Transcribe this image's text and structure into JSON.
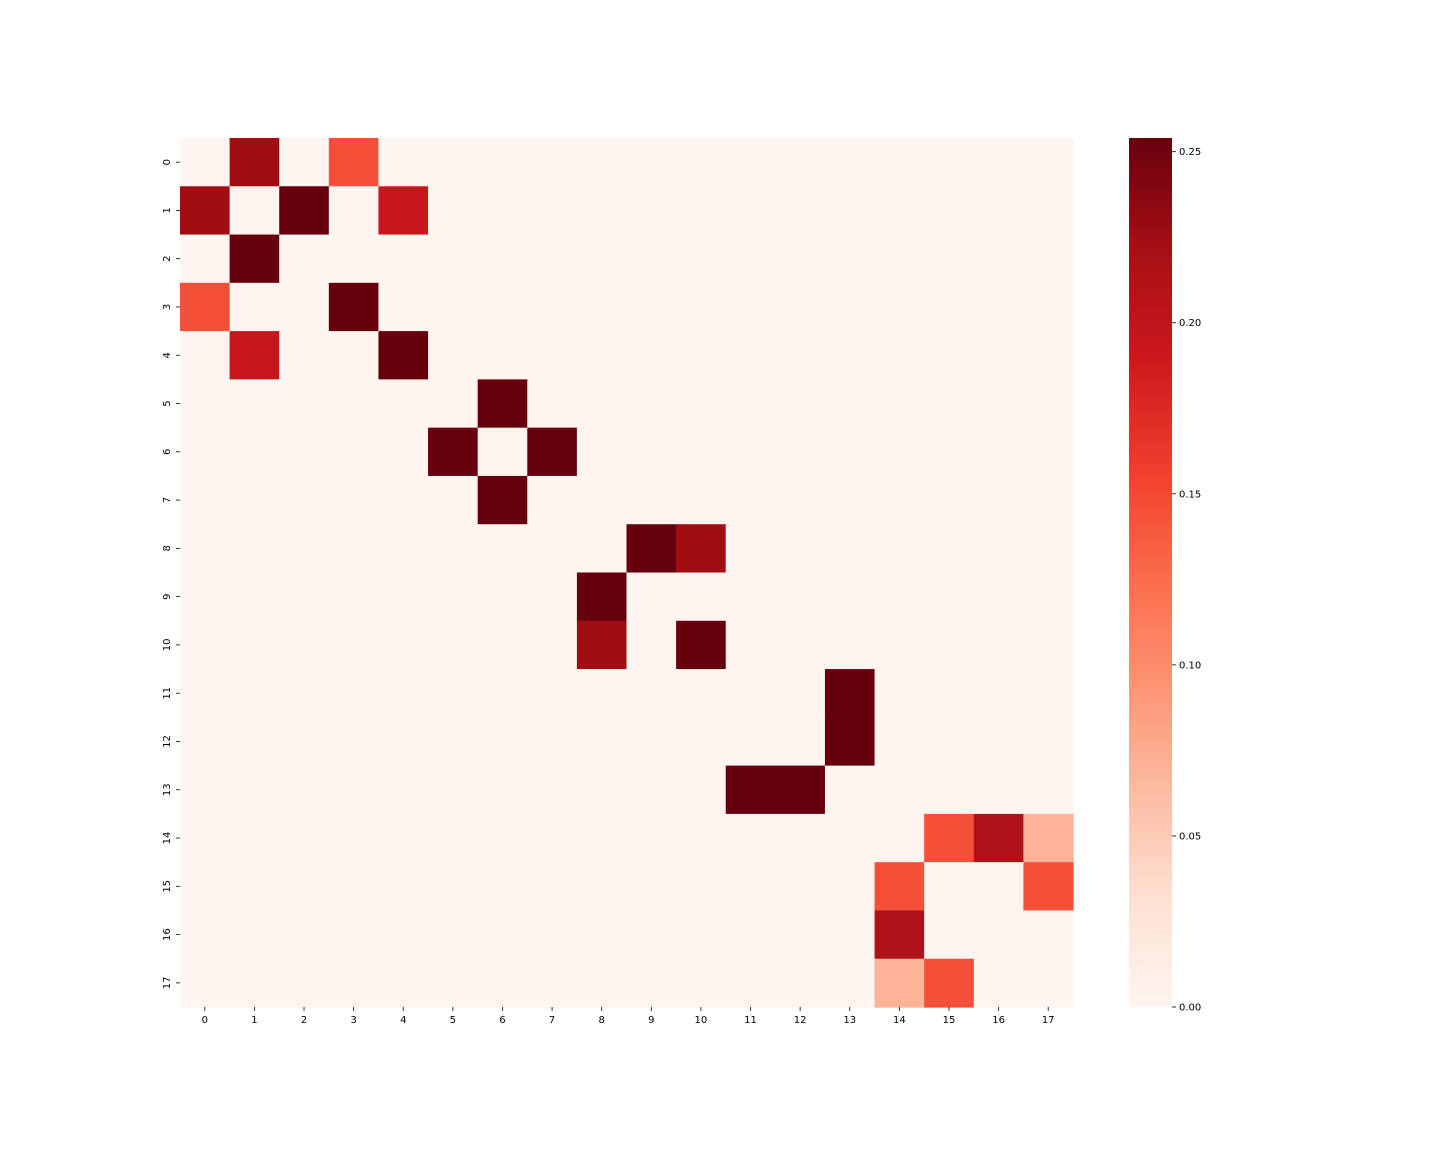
{
  "chart_data": {
    "type": "heatmap",
    "title": "",
    "xlabel": "",
    "ylabel": "",
    "x_labels": [
      "0",
      "1",
      "2",
      "3",
      "4",
      "5",
      "6",
      "7",
      "8",
      "9",
      "10",
      "11",
      "12",
      "13",
      "14",
      "15",
      "16",
      "17"
    ],
    "y_labels": [
      "0",
      "1",
      "2",
      "3",
      "4",
      "5",
      "6",
      "7",
      "8",
      "9",
      "10",
      "11",
      "12",
      "13",
      "14",
      "15",
      "16",
      "17"
    ],
    "colormap": "Reds",
    "vmin": 0.0,
    "vmax": 0.254,
    "colorbar_ticks": [
      {
        "value": 0.0,
        "label": "0.00"
      },
      {
        "value": 0.05,
        "label": "0.05"
      },
      {
        "value": 0.1,
        "label": "0.10"
      },
      {
        "value": 0.15,
        "label": "0.15"
      },
      {
        "value": 0.2,
        "label": "0.20"
      },
      {
        "value": 0.25,
        "label": "0.25"
      }
    ],
    "values": [
      [
        0,
        0.225,
        0,
        0.145,
        0,
        0,
        0,
        0,
        0,
        0,
        0,
        0,
        0,
        0,
        0,
        0,
        0,
        0
      ],
      [
        0.225,
        0,
        0.254,
        0,
        0.195,
        0,
        0,
        0,
        0,
        0,
        0,
        0,
        0,
        0,
        0,
        0,
        0,
        0
      ],
      [
        0,
        0.254,
        0,
        0,
        0,
        0,
        0,
        0,
        0,
        0,
        0,
        0,
        0,
        0,
        0,
        0,
        0,
        0
      ],
      [
        0.145,
        0,
        0,
        0.254,
        0,
        0,
        0,
        0,
        0,
        0,
        0,
        0,
        0,
        0,
        0,
        0,
        0,
        0
      ],
      [
        0,
        0.195,
        0,
        0,
        0.254,
        0,
        0,
        0,
        0,
        0,
        0,
        0,
        0,
        0,
        0,
        0,
        0,
        0
      ],
      [
        0,
        0,
        0,
        0,
        0,
        0,
        0.254,
        0,
        0,
        0,
        0,
        0,
        0,
        0,
        0,
        0,
        0,
        0
      ],
      [
        0,
        0,
        0,
        0,
        0,
        0.254,
        0,
        0.254,
        0,
        0,
        0,
        0,
        0,
        0,
        0,
        0,
        0,
        0
      ],
      [
        0,
        0,
        0,
        0,
        0,
        0,
        0.254,
        0,
        0,
        0,
        0,
        0,
        0,
        0,
        0,
        0,
        0,
        0
      ],
      [
        0,
        0,
        0,
        0,
        0,
        0,
        0,
        0,
        0,
        0.254,
        0.225,
        0,
        0,
        0,
        0,
        0,
        0,
        0
      ],
      [
        0,
        0,
        0,
        0,
        0,
        0,
        0,
        0,
        0.254,
        0,
        0,
        0,
        0,
        0,
        0,
        0,
        0,
        0
      ],
      [
        0,
        0,
        0,
        0,
        0,
        0,
        0,
        0,
        0.225,
        0,
        0.254,
        0,
        0,
        0,
        0,
        0,
        0,
        0
      ],
      [
        0,
        0,
        0,
        0,
        0,
        0,
        0,
        0,
        0,
        0,
        0,
        0,
        0,
        0.254,
        0,
        0,
        0,
        0
      ],
      [
        0,
        0,
        0,
        0,
        0,
        0,
        0,
        0,
        0,
        0,
        0,
        0,
        0,
        0.254,
        0,
        0,
        0,
        0
      ],
      [
        0,
        0,
        0,
        0,
        0,
        0,
        0,
        0,
        0,
        0,
        0,
        0.254,
        0.254,
        0,
        0,
        0,
        0,
        0
      ],
      [
        0,
        0,
        0,
        0,
        0,
        0,
        0,
        0,
        0,
        0,
        0,
        0,
        0,
        0,
        0,
        0.145,
        0.215,
        0.07
      ],
      [
        0,
        0,
        0,
        0,
        0,
        0,
        0,
        0,
        0,
        0,
        0,
        0,
        0,
        0,
        0.145,
        0,
        0,
        0.145
      ],
      [
        0,
        0,
        0,
        0,
        0,
        0,
        0,
        0,
        0,
        0,
        0,
        0,
        0,
        0,
        0.215,
        0,
        0,
        0
      ],
      [
        0,
        0,
        0,
        0,
        0,
        0,
        0,
        0,
        0,
        0,
        0,
        0,
        0,
        0,
        0.07,
        0.145,
        0,
        0
      ]
    ]
  }
}
